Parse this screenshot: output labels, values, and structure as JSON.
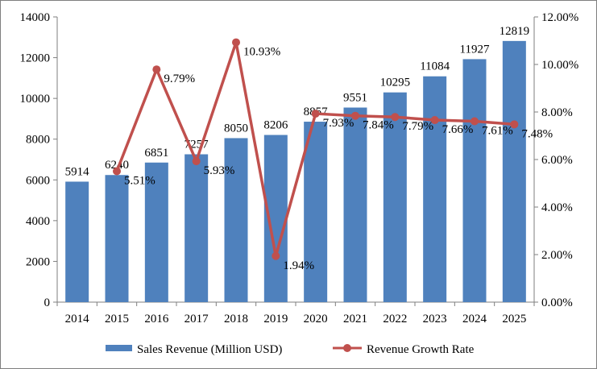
{
  "chart_data": {
    "type": "bar",
    "categories": [
      "2014",
      "2015",
      "2016",
      "2017",
      "2018",
      "2019",
      "2020",
      "2021",
      "2022",
      "2023",
      "2024",
      "2025"
    ],
    "series": [
      {
        "name": "Sales Revenue (Million USD)",
        "type": "bar",
        "axis": "left",
        "color": "#4f81bd",
        "values": [
          5914,
          6240,
          6851,
          7257,
          8050,
          8206,
          8857,
          9551,
          10295,
          11084,
          11927,
          12819
        ],
        "labels": [
          "5914",
          "6240",
          "6851",
          "7257",
          "8050",
          "8206",
          "8857",
          "9551",
          "10295",
          "11084",
          "11927",
          "12819"
        ]
      },
      {
        "name": "Revenue Growth Rate",
        "type": "line",
        "axis": "right",
        "color": "#c0504d",
        "values": [
          null,
          5.51,
          9.79,
          5.93,
          10.93,
          1.94,
          7.93,
          7.84,
          7.79,
          7.66,
          7.61,
          7.48
        ],
        "labels": [
          "",
          "5.51%",
          "9.79%",
          "5.93%",
          "10.93%",
          "1.94%",
          "7.93%",
          "7.84%",
          "7.79%",
          "7.66%",
          "7.61%",
          "7.48%"
        ]
      }
    ],
    "y_left": {
      "ylim": [
        0,
        14000
      ],
      "ticks": [
        "0",
        "2000",
        "4000",
        "6000",
        "8000",
        "10000",
        "12000",
        "14000"
      ]
    },
    "y_right": {
      "ylim": [
        0,
        12
      ],
      "ticks": [
        "0.00%",
        "2.00%",
        "4.00%",
        "6.00%",
        "8.00%",
        "10.00%",
        "12.00%"
      ]
    },
    "grid": false,
    "legend": "bottom",
    "title": "",
    "xlabel": "",
    "ylabel": ""
  }
}
